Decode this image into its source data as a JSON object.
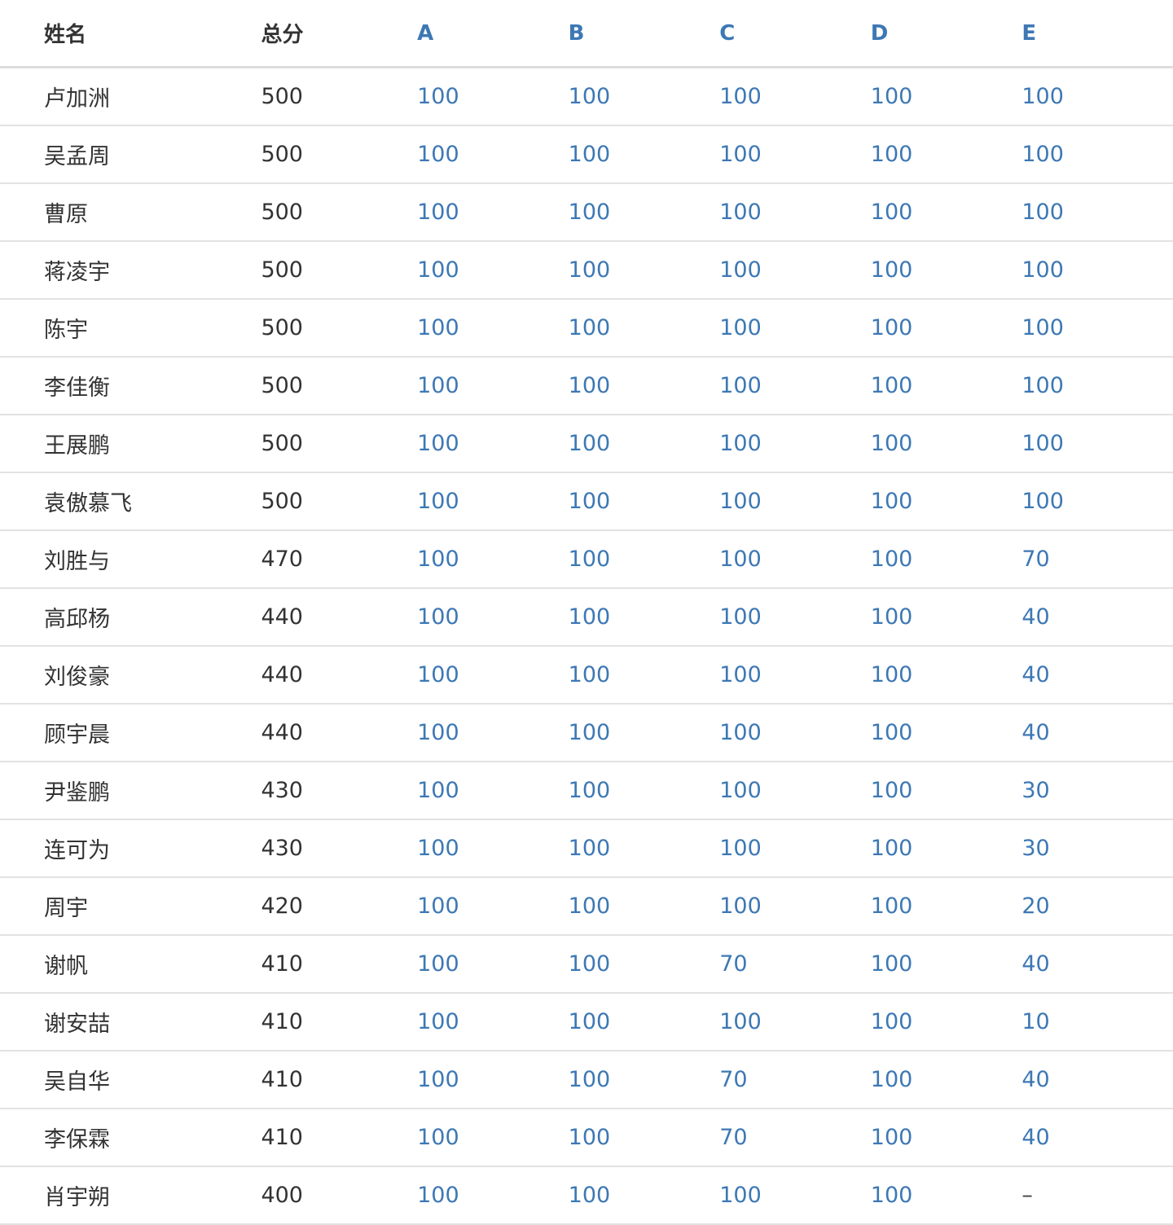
{
  "table": {
    "headers": [
      "姓名",
      "总分",
      "A",
      "B",
      "C",
      "D",
      "E"
    ],
    "rows": [
      [
        "卢加洲",
        "500",
        "100",
        "100",
        "100",
        "100",
        "100"
      ],
      [
        "吴孟周",
        "500",
        "100",
        "100",
        "100",
        "100",
        "100"
      ],
      [
        "曹原",
        "500",
        "100",
        "100",
        "100",
        "100",
        "100"
      ],
      [
        "蒋凌宇",
        "500",
        "100",
        "100",
        "100",
        "100",
        "100"
      ],
      [
        "陈宇",
        "500",
        "100",
        "100",
        "100",
        "100",
        "100"
      ],
      [
        "李佳衡",
        "500",
        "100",
        "100",
        "100",
        "100",
        "100"
      ],
      [
        "王展鹏",
        "500",
        "100",
        "100",
        "100",
        "100",
        "100"
      ],
      [
        "袁傲慕飞",
        "500",
        "100",
        "100",
        "100",
        "100",
        "100"
      ],
      [
        "刘胜与",
        "470",
        "100",
        "100",
        "100",
        "100",
        "70"
      ],
      [
        "高邱杨",
        "440",
        "100",
        "100",
        "100",
        "100",
        "40"
      ],
      [
        "刘俊豪",
        "440",
        "100",
        "100",
        "100",
        "100",
        "40"
      ],
      [
        "顾宇晨",
        "440",
        "100",
        "100",
        "100",
        "100",
        "40"
      ],
      [
        "尹鉴鹏",
        "430",
        "100",
        "100",
        "100",
        "100",
        "30"
      ],
      [
        "连可为",
        "430",
        "100",
        "100",
        "100",
        "100",
        "30"
      ],
      [
        "周宇",
        "420",
        "100",
        "100",
        "100",
        "100",
        "20"
      ],
      [
        "谢帆",
        "410",
        "100",
        "100",
        "70",
        "100",
        "40"
      ],
      [
        "谢安喆",
        "410",
        "100",
        "100",
        "100",
        "100",
        "10"
      ],
      [
        "吴自华",
        "410",
        "100",
        "100",
        "70",
        "100",
        "40"
      ],
      [
        "李保霖",
        "410",
        "100",
        "100",
        "70",
        "100",
        "40"
      ],
      [
        "肖宇朔",
        "400",
        "100",
        "100",
        "100",
        "100",
        "–"
      ]
    ]
  },
  "colors": {
    "text": "#333333",
    "link": "#3d78b4",
    "border": "#dddddd"
  }
}
